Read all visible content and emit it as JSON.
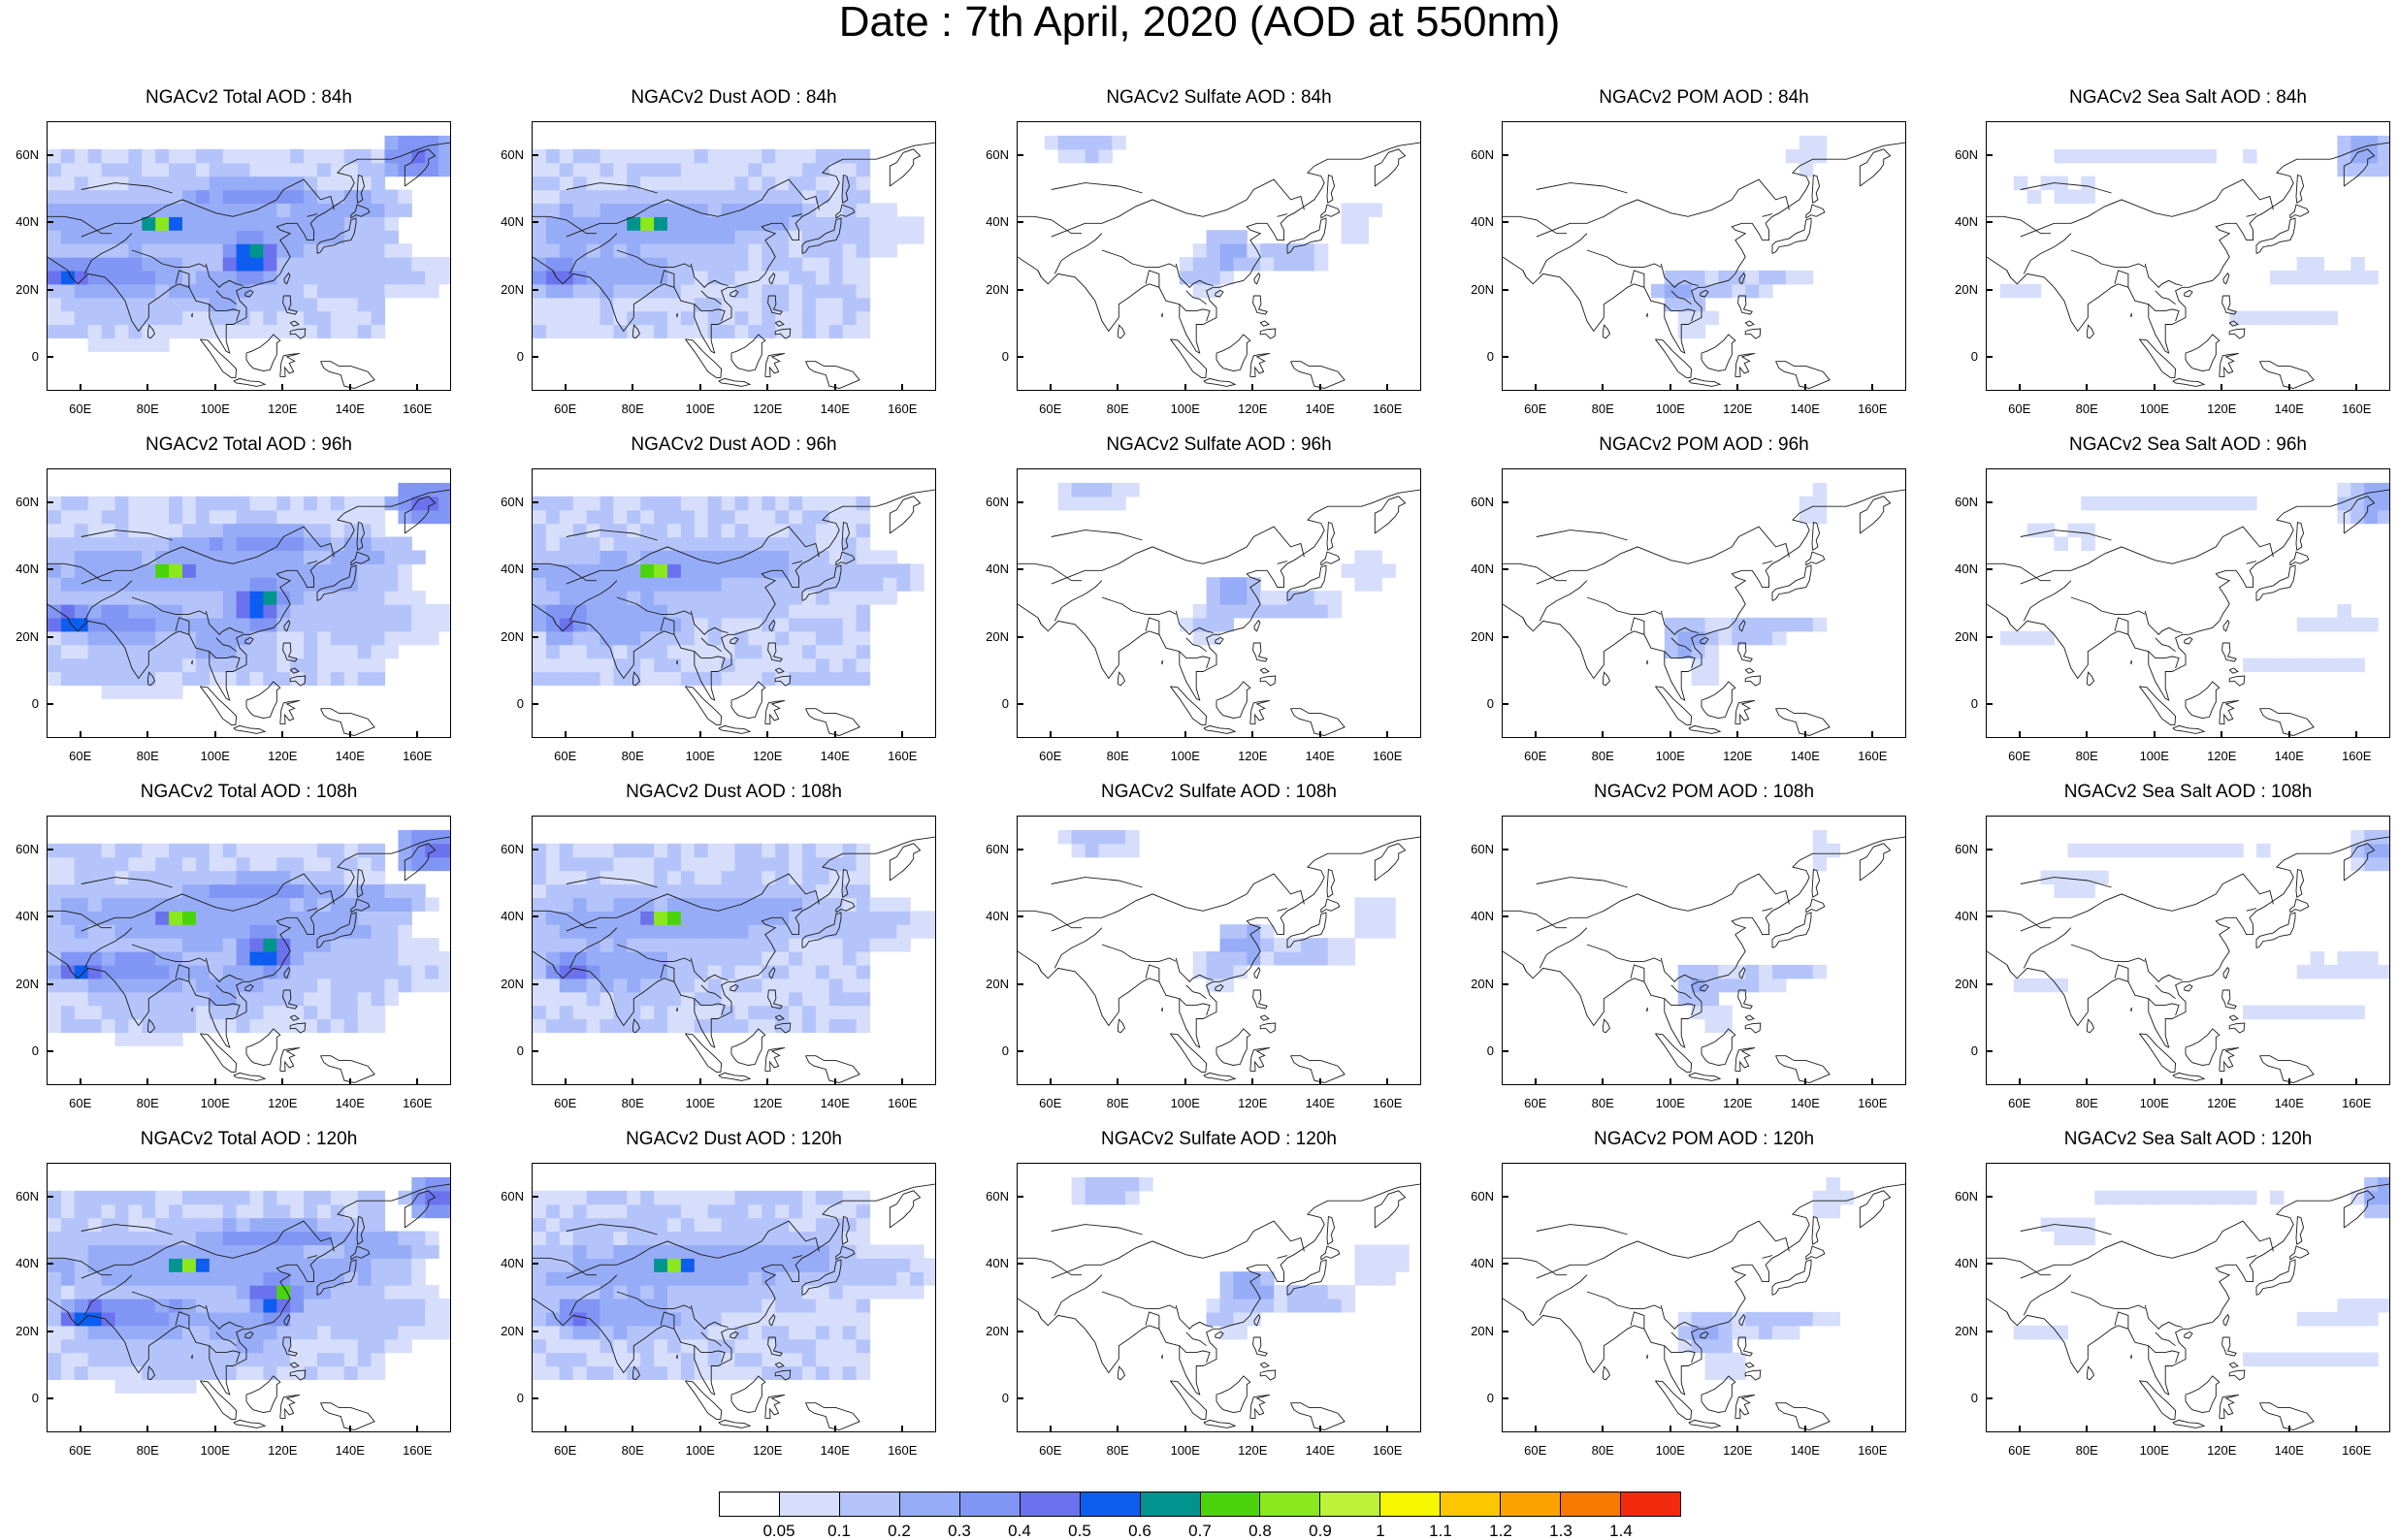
{
  "figure_title": "Date : 7th April, 2020 (AOD at 550nm)",
  "axes": {
    "lat_ticks": [
      "60N",
      "40N",
      "20N",
      "0"
    ],
    "lat_values": [
      60,
      40,
      20,
      0
    ],
    "lon_ticks": [
      "60E",
      "80E",
      "100E",
      "120E",
      "140E",
      "160E"
    ],
    "lon_values": [
      60,
      80,
      100,
      120,
      140,
      160
    ],
    "lon_range": [
      50,
      170
    ],
    "lat_range": [
      -10,
      70
    ]
  },
  "panels": [
    [
      "NGACv2 Total AOD : 84h",
      "NGACv2 Dust AOD : 84h",
      "NGACv2 Sulfate AOD : 84h",
      "NGACv2 POM AOD : 84h",
      "NGACv2 Sea Salt AOD : 84h"
    ],
    [
      "NGACv2 Total AOD : 96h",
      "NGACv2 Dust AOD : 96h",
      "NGACv2 Sulfate AOD : 96h",
      "NGACv2 POM AOD : 96h",
      "NGACv2 Sea Salt AOD : 96h"
    ],
    [
      "NGACv2 Total AOD : 108h",
      "NGACv2 Dust AOD : 108h",
      "NGACv2 Sulfate AOD : 108h",
      "NGACv2 POM AOD : 108h",
      "NGACv2 Sea Salt AOD : 108h"
    ],
    [
      "NGACv2 Total AOD : 120h",
      "NGACv2 Dust AOD : 120h",
      "NGACv2 Sulfate AOD : 120h",
      "NGACv2 POM AOD : 120h",
      "NGACv2 Sea Salt  AOD : 120h"
    ]
  ],
  "colorbar": {
    "labels": [
      "0.05",
      "0.1",
      "0.2",
      "0.3",
      "0.4",
      "0.5",
      "0.6",
      "0.7",
      "0.8",
      "0.9",
      "1",
      "1.1",
      "1.2",
      "1.3",
      "1.4"
    ],
    "colors": [
      "#ffffff",
      "#d6defc",
      "#b4c4fa",
      "#97acf7",
      "#8196f4",
      "#6b72ee",
      "#0d5df1",
      "#00948f",
      "#4bd40b",
      "#8be81c",
      "#bef239",
      "#f6f600",
      "#fcc600",
      "#fba200",
      "#f97800",
      "#f42a0e"
    ]
  }
}
